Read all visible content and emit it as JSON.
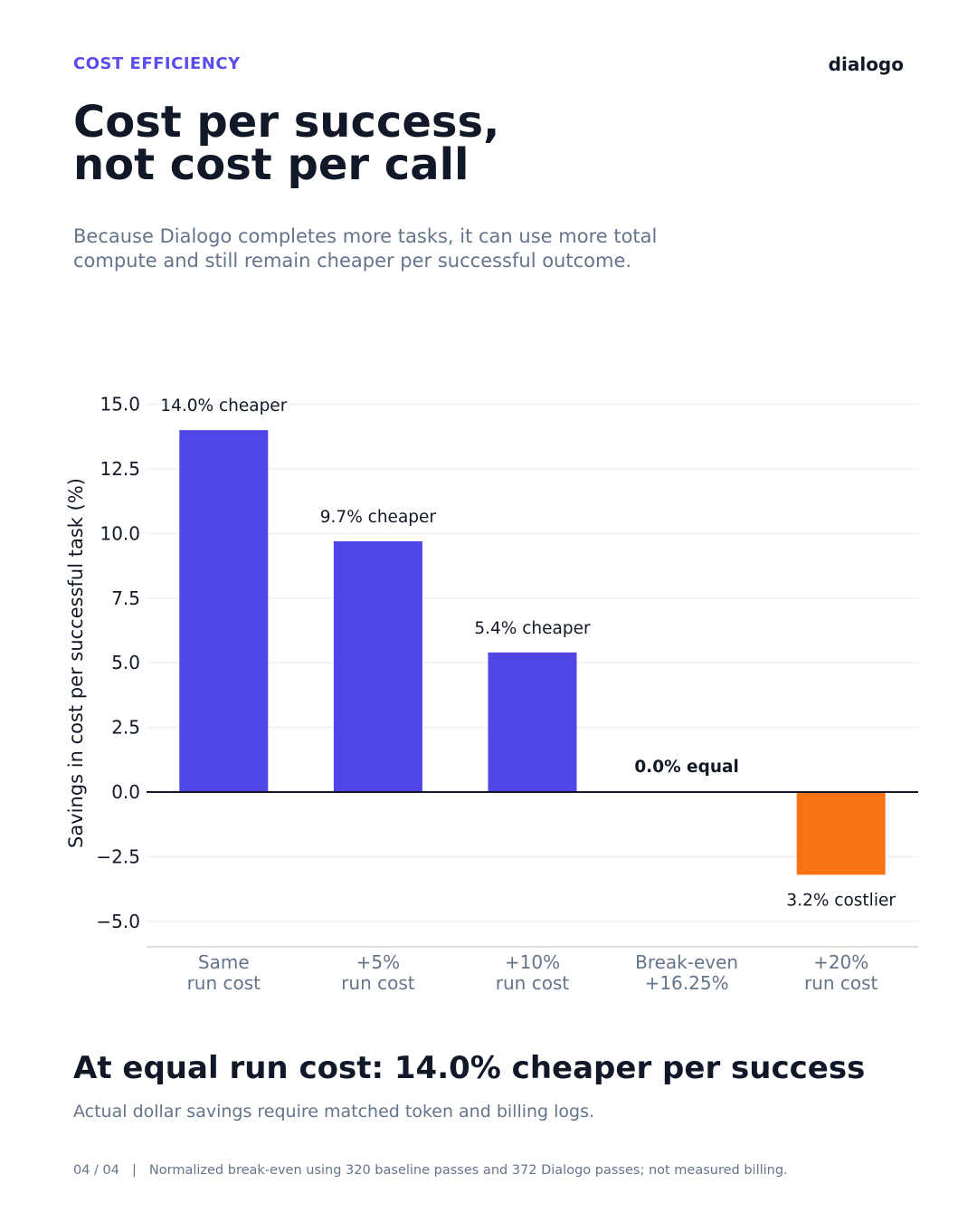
{
  "header": {
    "eyebrow": "COST EFFICIENCY",
    "brand": "dialogo",
    "title_line1": "Cost per success,",
    "title_line2": "not cost per call",
    "subtitle_line1": "Because Dialogo completes more tasks, it can use more total",
    "subtitle_line2": "compute and still remain cheaper per successful outcome."
  },
  "chart_data": {
    "type": "bar",
    "title": "",
    "xlabel": "",
    "ylabel": "Savings in cost per successful task (%)",
    "ylim": [
      -6.0,
      15.5
    ],
    "yticks": [
      15.0,
      12.5,
      10.0,
      7.5,
      5.0,
      2.5,
      0.0,
      -2.5,
      -5.0
    ],
    "ytick_labels": [
      "15.0",
      "12.5",
      "10.0",
      "7.5",
      "5.0",
      "2.5",
      "0.0",
      "−2.5",
      "−5.0"
    ],
    "grid": "horizontal",
    "categories": [
      [
        "Same",
        "run cost"
      ],
      [
        "+5%",
        "run cost"
      ],
      [
        "+10%",
        "run cost"
      ],
      [
        "Break-even",
        "+16.25%"
      ],
      [
        "+20%",
        "run cost"
      ]
    ],
    "values": [
      14.0,
      9.7,
      5.4,
      0.0,
      -3.2
    ],
    "data_labels": [
      "14.0% cheaper",
      "9.7% cheaper",
      "5.4% cheaper",
      "0.0% equal",
      "3.2% costlier"
    ],
    "colors": {
      "positive": "#5046e5",
      "negative": "#f97316",
      "zero_line": "#111827",
      "grid": "#eef0f3",
      "tick_text": "#111827",
      "category_text": "#64748b"
    }
  },
  "summary": {
    "headline": "At equal run cost: 14.0% cheaper per success",
    "caption": "Actual dollar savings require matched token and billing logs."
  },
  "footer": {
    "page": "04 / 04",
    "separator": "|",
    "note": "Normalized break-even using 320 baseline passes and 372 Dialogo passes; not measured billing."
  }
}
